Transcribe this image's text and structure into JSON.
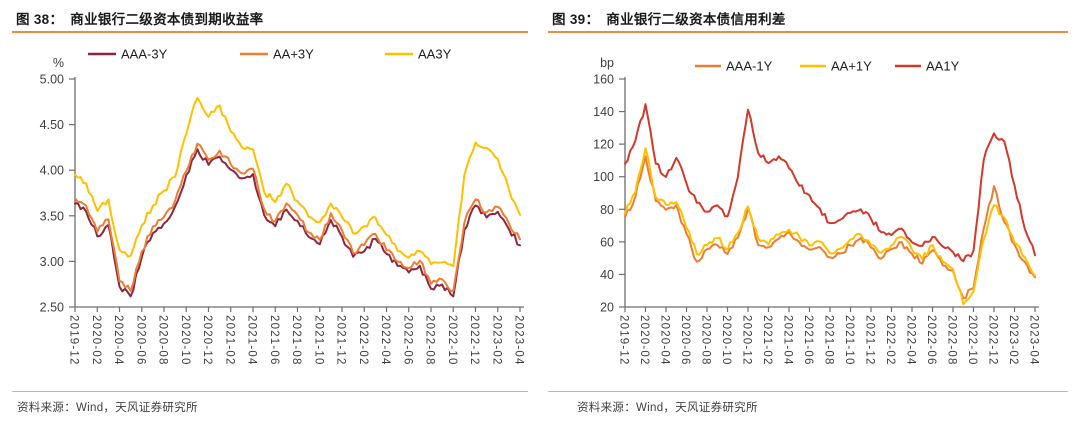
{
  "styles": {
    "accent_rule_top": "#E88C42",
    "accent_rule_bottom": "#F0AC74",
    "axis_color": "#6E6E6E",
    "tick_label_color": "#3F3F3F",
    "legend_label_color": "#1F1F1F",
    "title_color": "#1A1A1A"
  },
  "chart_data": [
    {
      "type": "line",
      "figure_label": "图 38：",
      "title": "商业银行二级资本债到期收益率",
      "unit": "%",
      "ylim": [
        2.5,
        5.0
      ],
      "ytick_labels": [
        "5.00",
        "4.50",
        "4.00",
        "3.50",
        "3.00",
        "2.50"
      ],
      "x_start": "2019-12",
      "x_step_months": 1,
      "x_tick_labels": [
        "2019-12",
        "2020-02",
        "2020-04",
        "2020-06",
        "2020-08",
        "2020-10",
        "2020-12",
        "2021-02",
        "2021-04",
        "2021-06",
        "2021-08",
        "2021-10",
        "2021-12",
        "2022-02",
        "2022-04",
        "2022-06",
        "2022-08",
        "2022-10",
        "2022-12",
        "2023-02",
        "2023-04"
      ],
      "grid": false,
      "legend_position": "top",
      "series": [
        {
          "name": "AAA-3Y",
          "color": "#8E2640",
          "values": [
            3.63,
            3.55,
            3.28,
            3.4,
            2.72,
            2.62,
            3.05,
            3.32,
            3.42,
            3.6,
            3.95,
            4.22,
            4.05,
            4.15,
            4.0,
            3.9,
            3.95,
            3.52,
            3.38,
            3.58,
            3.45,
            3.26,
            3.18,
            3.45,
            3.28,
            3.05,
            3.12,
            3.25,
            3.08,
            2.95,
            2.88,
            2.95,
            2.7,
            2.75,
            2.62,
            3.35,
            3.62,
            3.48,
            3.55,
            3.35,
            3.18
          ]
        },
        {
          "name": "AA+3Y",
          "color": "#ED7D31",
          "values": [
            3.7,
            3.62,
            3.33,
            3.45,
            2.78,
            2.68,
            3.1,
            3.38,
            3.48,
            3.66,
            4.0,
            4.3,
            4.12,
            4.22,
            4.06,
            3.96,
            4.02,
            3.58,
            3.44,
            3.64,
            3.5,
            3.31,
            3.24,
            3.52,
            3.34,
            3.1,
            3.18,
            3.3,
            3.13,
            3.0,
            2.93,
            3.0,
            2.75,
            2.8,
            2.68,
            3.42,
            3.68,
            3.54,
            3.6,
            3.42,
            3.24
          ]
        },
        {
          "name": "AA3Y",
          "color": "#FFC000",
          "values": [
            3.95,
            3.85,
            3.56,
            3.68,
            3.12,
            3.06,
            3.4,
            3.62,
            3.78,
            3.92,
            4.4,
            4.8,
            4.58,
            4.72,
            4.42,
            4.25,
            4.22,
            3.76,
            3.66,
            3.85,
            3.66,
            3.48,
            3.42,
            3.64,
            3.48,
            3.3,
            3.38,
            3.48,
            3.28,
            3.12,
            3.04,
            3.12,
            2.96,
            3.0,
            2.95,
            3.95,
            4.3,
            4.25,
            4.12,
            3.8,
            3.5
          ]
        }
      ],
      "source": "资料来源：Wind，天风证券研究所"
    },
    {
      "type": "line",
      "figure_label": "图 39：",
      "title": "商业银行二级资本债信用利差",
      "unit": "bp",
      "ylim": [
        20,
        160
      ],
      "ytick_labels": [
        "160",
        "140",
        "120",
        "100",
        "80",
        "60",
        "40",
        "20"
      ],
      "x_start": "2019-12",
      "x_step_months": 1,
      "x_tick_labels": [
        "2019-12",
        "2020-02",
        "2020-04",
        "2020-06",
        "2020-08",
        "2020-10",
        "2020-12",
        "2021-02",
        "2021-04",
        "2021-06",
        "2021-08",
        "2021-10",
        "2021-12",
        "2022-02",
        "2022-04",
        "2022-06",
        "2022-08",
        "2022-10",
        "2022-12",
        "2023-02",
        "2023-04"
      ],
      "grid": false,
      "legend_position": "top",
      "series": [
        {
          "name": "AAA-1Y",
          "color": "#ED7D31",
          "values": [
            75,
            88,
            113,
            85,
            80,
            82,
            65,
            48,
            55,
            58,
            52,
            62,
            80,
            58,
            56,
            62,
            66,
            60,
            55,
            57,
            50,
            53,
            58,
            62,
            56,
            50,
            55,
            60,
            52,
            47,
            55,
            46,
            42,
            25,
            32,
            68,
            94,
            72,
            58,
            48,
            38
          ]
        },
        {
          "name": "AA+1Y",
          "color": "#FFC000",
          "values": [
            78,
            90,
            118,
            88,
            83,
            85,
            68,
            52,
            58,
            62,
            55,
            66,
            82,
            62,
            58,
            65,
            68,
            63,
            58,
            60,
            53,
            56,
            61,
            65,
            58,
            53,
            58,
            63,
            55,
            50,
            58,
            48,
            44,
            22,
            30,
            62,
            82,
            75,
            60,
            50,
            40
          ]
        },
        {
          "name": "AA1Y",
          "color": "#D2392B",
          "values": [
            108,
            122,
            145,
            108,
            100,
            112,
            96,
            84,
            78,
            82,
            76,
            100,
            141,
            115,
            108,
            112,
            105,
            95,
            88,
            80,
            72,
            74,
            78,
            80,
            74,
            66,
            64,
            68,
            60,
            57,
            63,
            57,
            54,
            48,
            55,
            110,
            127,
            122,
            95,
            68,
            52
          ]
        }
      ],
      "source": "资料来源：Wind，天风证券研究所"
    }
  ]
}
